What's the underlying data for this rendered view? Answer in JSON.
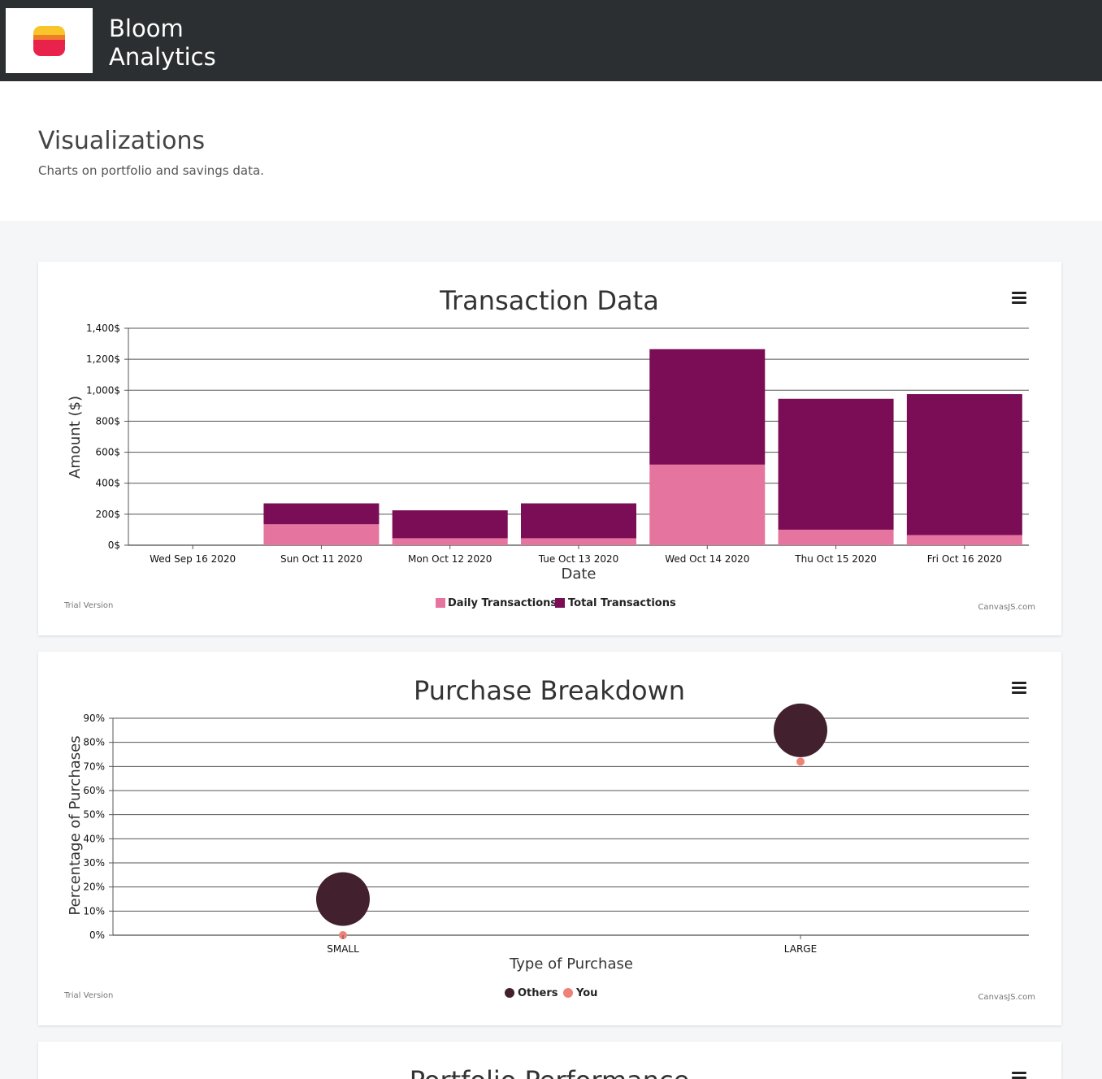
{
  "header": {
    "brand_line1": "Bloom",
    "brand_line2": "Analytics"
  },
  "hero": {
    "title": "Visualizations",
    "subtitle": "Charts on portfolio and savings data."
  },
  "colors": {
    "daily": "#e5749e",
    "total": "#7a0d55",
    "others": "#42202e",
    "you": "#ee8278"
  },
  "credits": {
    "trial": "Trial Version",
    "canvasjs": "CanvasJS.com"
  },
  "chart_data": [
    {
      "type": "bar",
      "stacked": true,
      "title": "Transaction Data",
      "xlabel": "Date",
      "ylabel": "Amount ($)",
      "ylim": [
        0,
        1400
      ],
      "yticks": [
        "0$",
        "200$",
        "400$",
        "600$",
        "800$",
        "1,000$",
        "1,200$",
        "1,400$"
      ],
      "grid": true,
      "legend": "bottom",
      "categories": [
        "Wed Sep 16 2020",
        "Sun Oct 11 2020",
        "Mon Oct 12 2020",
        "Tue Oct 13 2020",
        "Wed Oct 14 2020",
        "Thu Oct 15 2020",
        "Fri Oct 16 2020"
      ],
      "series": [
        {
          "name": "Daily Transactions",
          "values": [
            0,
            135,
            45,
            45,
            520,
            100,
            65
          ]
        },
        {
          "name": "Total Transactions",
          "values": [
            0,
            135,
            180,
            225,
            745,
            845,
            910
          ]
        }
      ]
    },
    {
      "type": "scatter",
      "subtype": "bubble",
      "title": "Purchase Breakdown",
      "xlabel": "Type of Purchase",
      "ylabel": "Percentage of Purchases",
      "ylim": [
        0,
        90
      ],
      "yticks": [
        "0%",
        "10%",
        "20%",
        "30%",
        "40%",
        "50%",
        "60%",
        "70%",
        "80%",
        "90%"
      ],
      "grid": true,
      "legend": "bottom",
      "categories": [
        "SMALL",
        "LARGE"
      ],
      "series": [
        {
          "name": "Others",
          "values": [
            15,
            85
          ]
        },
        {
          "name": "You",
          "values": [
            0,
            72
          ]
        }
      ]
    },
    {
      "type": "line",
      "title": "Portfolio Performance"
    }
  ]
}
